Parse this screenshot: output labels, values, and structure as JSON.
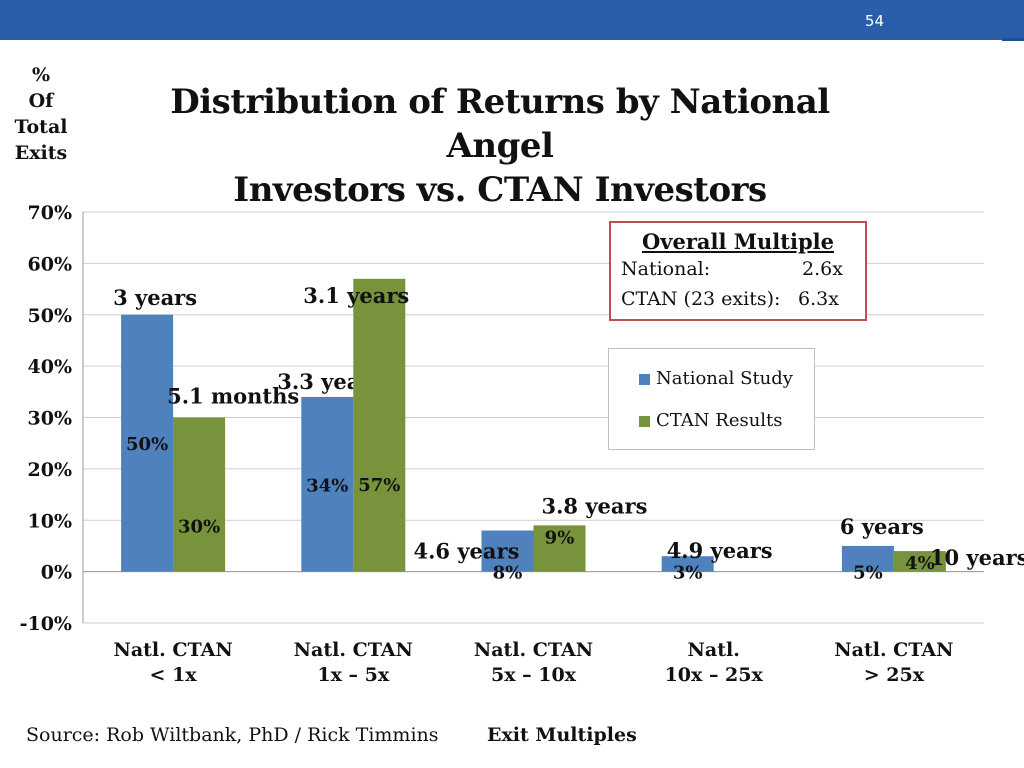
{
  "slide": {
    "page_number": "54",
    "title_line1": "Distribution of Returns by National Angel",
    "title_line2": "Investors vs. CTAN Investors",
    "y_axis_title": [
      "%",
      "Of",
      "Total",
      "Exits"
    ],
    "source": "Source: Rob Wiltbank, PhD / Rick Timmins",
    "x_axis_title": "Exit Multiples",
    "colors": {
      "topbar": "#2a5ea8",
      "national": "#4f81bd",
      "ctan": "#77933c",
      "box_border": "#c0504d"
    }
  },
  "overall_multiple": {
    "title": "Overall Multiple",
    "rows": [
      {
        "label": "National:",
        "value": "2.6x"
      },
      {
        "label": "CTAN (23 exits):",
        "value": "6.3x"
      }
    ]
  },
  "chart_data": {
    "type": "bar",
    "y_ticks": [
      "70%",
      "60%",
      "50%",
      "40%",
      "30%",
      "20%",
      "10%",
      "0%",
      "-10%"
    ],
    "ylim": [
      -10,
      70
    ],
    "categories": [
      {
        "label_line1": "Natl.  CTAN",
        "label_line2": "< 1x"
      },
      {
        "label_line1": "Natl.  CTAN",
        "label_line2": "1x – 5x"
      },
      {
        "label_line1": "Natl.  CTAN",
        "label_line2": "5x – 10x"
      },
      {
        "label_line1": "Natl.",
        "label_line2": "10x – 25x"
      },
      {
        "label_line1": "Natl.  CTAN",
        "label_line2": "> 25x"
      }
    ],
    "series": [
      {
        "name": "National Study",
        "values": [
          50,
          34,
          8,
          3,
          5
        ],
        "data_labels": [
          "50%",
          "34%",
          "8%",
          "3%",
          "5%"
        ],
        "durations": [
          "3 years",
          "3.3 years",
          "4.6 years",
          "4.9 years",
          "6 years"
        ]
      },
      {
        "name": "CTAN Results",
        "values": [
          30,
          57,
          9,
          null,
          4
        ],
        "data_labels": [
          "30%",
          "57%",
          "9%",
          null,
          "4%"
        ],
        "durations": [
          "5.1 months",
          "3.1 years",
          "3.8 years",
          null,
          "10 years"
        ]
      }
    ],
    "grid": true,
    "legend": "right"
  }
}
